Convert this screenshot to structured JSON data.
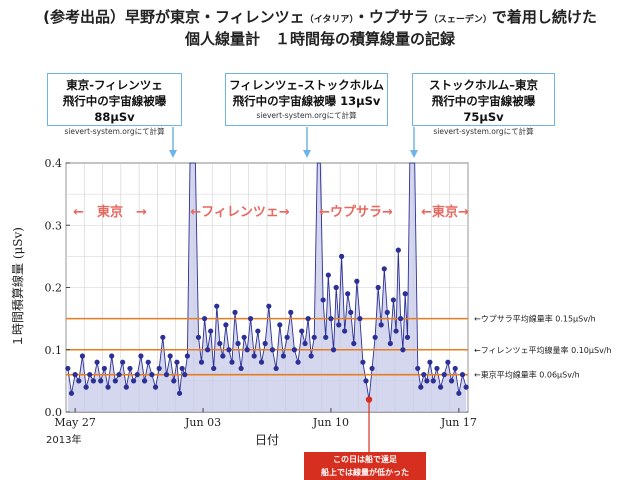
{
  "title": {
    "line1_a": "(参考出品）早野が東京・フィレンツェ",
    "line1_italy": "（イタリア）",
    "line1_b": "・ウプサラ",
    "line1_sweden": "（スェーデン）",
    "line1_c": "で着用し続けた",
    "line2": "個人線量計　１時間毎の積算線量の記録"
  },
  "flights": [
    {
      "route": "東京-フィレンツェ",
      "dose": "飛行中の宇宙線被曝 88μSv",
      "source": "sievert-system.orgにて計算"
    },
    {
      "route": "フィレンツェ–ストックホルム",
      "dose": "飛行中の宇宙線被曝 13μSv",
      "source": "sievert-system.orgにて計算"
    },
    {
      "route": "ストックホルム–東京",
      "dose": "飛行中の宇宙線被曝 75μSv",
      "source": "sievert-system.orgにて計算"
    }
  ],
  "region_labels": [
    "←　東京　→",
    "←フィレンツェ→",
    "←ウプサラ→",
    "←東京→"
  ],
  "note": {
    "line1": "この日は船で遠足",
    "line2": "船上では線量が低かった"
  },
  "colors": {
    "points": "#2b3095",
    "fill": "#c7c9e8",
    "avg_line": "#e87d1f",
    "callout": "#6fb4e8",
    "note": "#d62f1f",
    "region_label": "#e8675f"
  },
  "chart_data": {
    "type": "line",
    "xlabel": "日付",
    "ylabel": "１時間積算線量 (μSv)",
    "year_label": "2013年",
    "x_tick_labels": [
      "May 27",
      "Jun 03",
      "Jun 10",
      "Jun 17"
    ],
    "x_range": [
      "2013-05-27",
      "2013-06-18"
    ],
    "y_range": [
      0.0,
      0.4
    ],
    "y_tick_labels": [
      "0.0",
      "0.1",
      "0.2",
      "0.3",
      "0.4"
    ],
    "grid": true,
    "reference_lines": [
      {
        "label": "←ウプサラ平均線量率 0.15μSv/h",
        "value": 0.15
      },
      {
        "label": "←フィレンツェ平均線量率 0.10μSv/h",
        "value": 0.1
      },
      {
        "label": "←東京平均線量率 0.06μSv/h",
        "value": 0.06
      }
    ],
    "annotated_point": {
      "x": "2013-06-12",
      "y": 0.02
    },
    "series": [
      {
        "values": [
          {
            "x": "2013-05-27",
            "y": 0.07
          },
          {
            "x": "2013-05-27",
            "y": 0.03
          },
          {
            "x": "2013-05-27",
            "y": 0.06
          },
          {
            "x": "2013-05-27",
            "y": 0.05
          },
          {
            "x": "2013-05-27",
            "y": 0.09
          },
          {
            "x": "2013-05-28",
            "y": 0.04
          },
          {
            "x": "2013-05-28",
            "y": 0.06
          },
          {
            "x": "2013-05-28",
            "y": 0.05
          },
          {
            "x": "2013-05-28",
            "y": 0.08
          },
          {
            "x": "2013-05-28",
            "y": 0.05
          },
          {
            "x": "2013-05-29",
            "y": 0.07
          },
          {
            "x": "2013-05-29",
            "y": 0.04
          },
          {
            "x": "2013-05-29",
            "y": 0.09
          },
          {
            "x": "2013-05-29",
            "y": 0.05
          },
          {
            "x": "2013-05-29",
            "y": 0.06
          },
          {
            "x": "2013-05-30",
            "y": 0.08
          },
          {
            "x": "2013-05-30",
            "y": 0.04
          },
          {
            "x": "2013-05-30",
            "y": 0.07
          },
          {
            "x": "2013-05-30",
            "y": 0.05
          },
          {
            "x": "2013-05-30",
            "y": 0.06
          },
          {
            "x": "2013-05-31",
            "y": 0.09
          },
          {
            "x": "2013-05-31",
            "y": 0.05
          },
          {
            "x": "2013-05-31",
            "y": 0.08
          },
          {
            "x": "2013-05-31",
            "y": 0.06
          },
          {
            "x": "2013-05-31",
            "y": 0.04
          },
          {
            "x": "2013-06-01",
            "y": 0.07
          },
          {
            "x": "2013-06-01",
            "y": 0.12
          },
          {
            "x": "2013-06-01",
            "y": 0.06
          },
          {
            "x": "2013-06-01",
            "y": 0.09
          },
          {
            "x": "2013-06-01",
            "y": 0.05
          },
          {
            "x": "2013-06-02",
            "y": 0.08
          },
          {
            "x": "2013-06-02",
            "y": 0.03
          },
          {
            "x": "2013-06-02",
            "y": 0.07
          },
          {
            "x": "2013-06-02",
            "y": 0.06
          },
          {
            "x": "2013-06-02",
            "y": 0.09
          },
          {
            "x": "2013-06-02",
            "y": 0.4
          },
          {
            "x": "2013-06-02",
            "y": 0.4
          },
          {
            "x": "2013-06-03",
            "y": 0.4
          },
          {
            "x": "2013-06-03",
            "y": 0.12
          },
          {
            "x": "2013-06-03",
            "y": 0.08
          },
          {
            "x": "2013-06-03",
            "y": 0.15
          },
          {
            "x": "2013-06-03",
            "y": 0.1
          },
          {
            "x": "2013-06-03",
            "y": 0.13
          },
          {
            "x": "2013-06-04",
            "y": 0.07
          },
          {
            "x": "2013-06-04",
            "y": 0.17
          },
          {
            "x": "2013-06-04",
            "y": 0.11
          },
          {
            "x": "2013-06-04",
            "y": 0.09
          },
          {
            "x": "2013-06-04",
            "y": 0.14
          },
          {
            "x": "2013-06-04",
            "y": 0.1
          },
          {
            "x": "2013-06-05",
            "y": 0.08
          },
          {
            "x": "2013-06-05",
            "y": 0.16
          },
          {
            "x": "2013-06-05",
            "y": 0.11
          },
          {
            "x": "2013-06-05",
            "y": 0.07
          },
          {
            "x": "2013-06-05",
            "y": 0.12
          },
          {
            "x": "2013-06-05",
            "y": 0.1
          },
          {
            "x": "2013-06-06",
            "y": 0.15
          },
          {
            "x": "2013-06-06",
            "y": 0.09
          },
          {
            "x": "2013-06-06",
            "y": 0.13
          },
          {
            "x": "2013-06-06",
            "y": 0.08
          },
          {
            "x": "2013-06-06",
            "y": 0.11
          },
          {
            "x": "2013-06-07",
            "y": 0.17
          },
          {
            "x": "2013-06-07",
            "y": 0.1
          },
          {
            "x": "2013-06-07",
            "y": 0.07
          },
          {
            "x": "2013-06-07",
            "y": 0.14
          },
          {
            "x": "2013-06-07",
            "y": 0.09
          },
          {
            "x": "2013-06-08",
            "y": 0.12
          },
          {
            "x": "2013-06-08",
            "y": 0.16
          },
          {
            "x": "2013-06-08",
            "y": 0.1
          },
          {
            "x": "2013-06-08",
            "y": 0.08
          },
          {
            "x": "2013-06-08",
            "y": 0.13
          },
          {
            "x": "2013-06-09",
            "y": 0.11
          },
          {
            "x": "2013-06-09",
            "y": 0.15
          },
          {
            "x": "2013-06-09",
            "y": 0.09
          },
          {
            "x": "2013-06-09",
            "y": 0.12
          },
          {
            "x": "2013-06-09",
            "y": 0.4
          },
          {
            "x": "2013-06-09",
            "y": 0.4
          },
          {
            "x": "2013-06-10",
            "y": 0.18
          },
          {
            "x": "2013-06-10",
            "y": 0.12
          },
          {
            "x": "2013-06-10",
            "y": 0.22
          },
          {
            "x": "2013-06-10",
            "y": 0.15
          },
          {
            "x": "2013-06-10",
            "y": 0.1
          },
          {
            "x": "2013-06-10",
            "y": 0.2
          },
          {
            "x": "2013-06-10",
            "y": 0.14
          },
          {
            "x": "2013-06-11",
            "y": 0.25
          },
          {
            "x": "2013-06-11",
            "y": 0.13
          },
          {
            "x": "2013-06-11",
            "y": 0.19
          },
          {
            "x": "2013-06-11",
            "y": 0.16
          },
          {
            "x": "2013-06-11",
            "y": 0.11
          },
          {
            "x": "2013-06-11",
            "y": 0.21
          },
          {
            "x": "2013-06-12",
            "y": 0.15
          },
          {
            "x": "2013-06-12",
            "y": 0.08
          },
          {
            "x": "2013-06-12",
            "y": 0.05
          },
          {
            "x": "2013-06-12",
            "y": 0.02
          },
          {
            "x": "2013-06-12",
            "y": 0.07
          },
          {
            "x": "2013-06-12",
            "y": 0.12
          },
          {
            "x": "2013-06-13",
            "y": 0.2
          },
          {
            "x": "2013-06-13",
            "y": 0.14
          },
          {
            "x": "2013-06-13",
            "y": 0.23
          },
          {
            "x": "2013-06-13",
            "y": 0.16
          },
          {
            "x": "2013-06-13",
            "y": 0.11
          },
          {
            "x": "2013-06-13",
            "y": 0.18
          },
          {
            "x": "2013-06-14",
            "y": 0.13
          },
          {
            "x": "2013-06-14",
            "y": 0.26
          },
          {
            "x": "2013-06-14",
            "y": 0.15
          },
          {
            "x": "2013-06-14",
            "y": 0.1
          },
          {
            "x": "2013-06-14",
            "y": 0.19
          },
          {
            "x": "2013-06-14",
            "y": 0.12
          },
          {
            "x": "2013-06-14",
            "y": 0.4
          },
          {
            "x": "2013-06-14",
            "y": 0.4
          },
          {
            "x": "2013-06-15",
            "y": 0.4
          },
          {
            "x": "2013-06-15",
            "y": 0.07
          },
          {
            "x": "2013-06-15",
            "y": 0.04
          },
          {
            "x": "2013-06-15",
            "y": 0.06
          },
          {
            "x": "2013-06-15",
            "y": 0.05
          },
          {
            "x": "2013-06-15",
            "y": 0.08
          },
          {
            "x": "2013-06-16",
            "y": 0.05
          },
          {
            "x": "2013-06-16",
            "y": 0.07
          },
          {
            "x": "2013-06-16",
            "y": 0.04
          },
          {
            "x": "2013-06-16",
            "y": 0.06
          },
          {
            "x": "2013-06-16",
            "y": 0.08
          },
          {
            "x": "2013-06-17",
            "y": 0.05
          },
          {
            "x": "2013-06-17",
            "y": 0.07
          },
          {
            "x": "2013-06-17",
            "y": 0.03
          },
          {
            "x": "2013-06-17",
            "y": 0.06
          },
          {
            "x": "2013-06-17",
            "y": 0.04
          }
        ]
      }
    ]
  }
}
